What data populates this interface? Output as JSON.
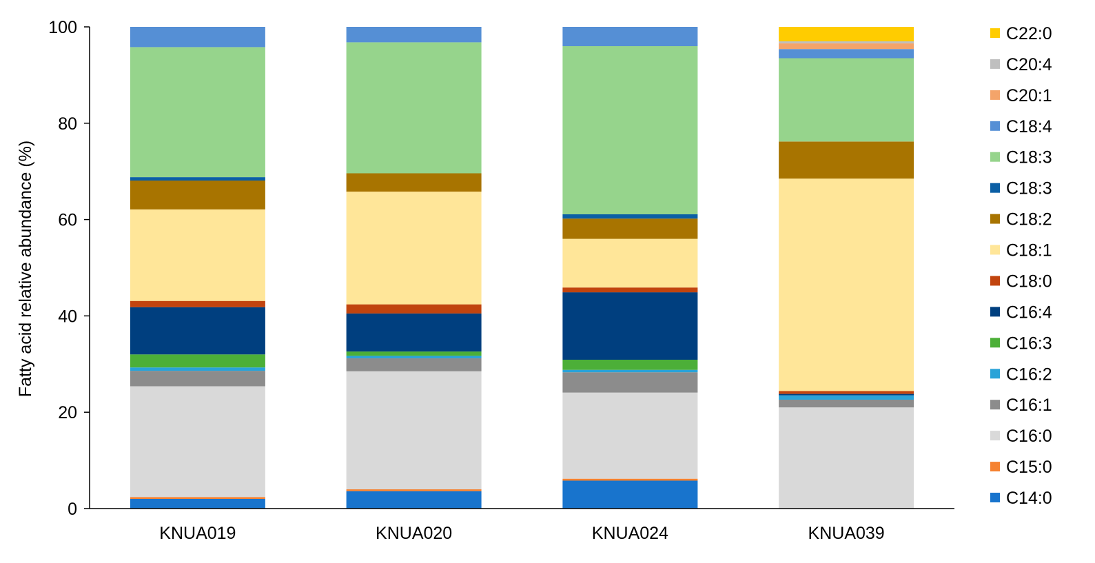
{
  "chart_data": {
    "type": "bar",
    "stacked": true,
    "title": "",
    "xlabel": "",
    "ylabel": "Fatty acid relative abundance (%)",
    "ylim": [
      0,
      100
    ],
    "yticks": [
      "0",
      "20",
      "40",
      "60",
      "80",
      "100"
    ],
    "grid": false,
    "legend_position": "right",
    "categories": [
      "KNUA019",
      "KNUA020",
      "KNUA024",
      "KNUA039"
    ],
    "series": [
      {
        "name": "C14:0",
        "color": "#1874CD",
        "values": [
          2.0,
          3.6,
          5.8,
          0.0
        ]
      },
      {
        "name": "C15:0",
        "color": "#F58231",
        "values": [
          0.4,
          0.4,
          0.4,
          0.0
        ]
      },
      {
        "name": "C16:0",
        "color": "#D9D9D9",
        "values": [
          23.0,
          24.5,
          17.9,
          21.0
        ]
      },
      {
        "name": "C16:1",
        "color": "#8C8C8C",
        "values": [
          3.2,
          2.7,
          4.2,
          1.6
        ]
      },
      {
        "name": "C16:2",
        "color": "#29A3D8",
        "values": [
          0.7,
          0.5,
          0.5,
          0.9
        ]
      },
      {
        "name": "C16:3",
        "color": "#4CAF38",
        "values": [
          2.7,
          0.9,
          2.1,
          0.0
        ]
      },
      {
        "name": "C16:4",
        "color": "#003F7F",
        "values": [
          9.8,
          7.9,
          14.0,
          0.3
        ]
      },
      {
        "name": "C18:0",
        "color": "#C1440E",
        "values": [
          1.3,
          1.9,
          1.0,
          0.6
        ]
      },
      {
        "name": "C18:1",
        "color": "#FFE699",
        "values": [
          19.0,
          23.4,
          10.1,
          44.1
        ]
      },
      {
        "name": "C18:2",
        "color": "#A87400",
        "values": [
          6.0,
          3.8,
          4.2,
          7.7
        ]
      },
      {
        "name": "C18:3",
        "color": "#0B5FA5",
        "values": [
          0.7,
          0.0,
          0.9,
          0.0
        ]
      },
      {
        "name": "C18:3",
        "color": "#96D48C",
        "values": [
          27.0,
          27.2,
          34.9,
          17.3
        ]
      },
      {
        "name": "C18:4",
        "color": "#558FD5",
        "values": [
          4.2,
          3.2,
          4.0,
          1.9
        ]
      },
      {
        "name": "C20:1",
        "color": "#F4A46A",
        "values": [
          0.0,
          0.0,
          0.0,
          1.2
        ]
      },
      {
        "name": "C20:4",
        "color": "#BFBFBF",
        "values": [
          0.0,
          0.0,
          0.0,
          0.4
        ]
      },
      {
        "name": "C22:0",
        "color": "#FFCC00",
        "values": [
          0.0,
          0.0,
          0.0,
          3.0
        ]
      }
    ]
  }
}
